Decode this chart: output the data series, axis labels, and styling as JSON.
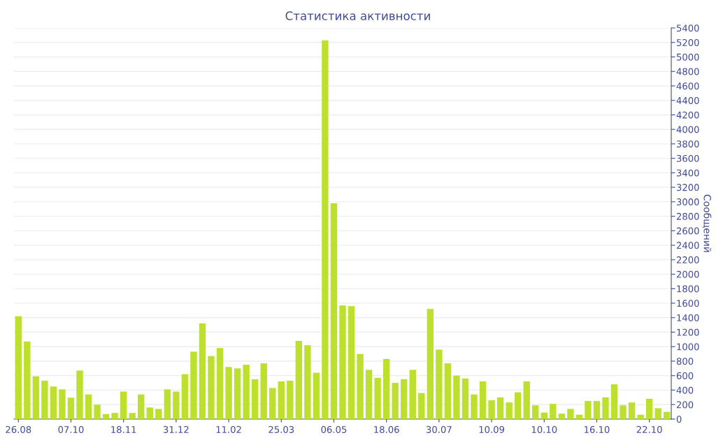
{
  "chart_data": {
    "type": "bar",
    "title": "Статистика активности",
    "ylabel": "Сообщений",
    "categories": [
      "26.08",
      null,
      null,
      null,
      null,
      null,
      "07.10",
      null,
      null,
      null,
      null,
      null,
      "18.11",
      null,
      null,
      null,
      null,
      null,
      "31.12",
      null,
      null,
      null,
      null,
      null,
      "11.02",
      null,
      null,
      null,
      null,
      null,
      "25.03",
      null,
      null,
      null,
      null,
      null,
      "06.05",
      null,
      null,
      null,
      null,
      null,
      "18.06",
      null,
      null,
      null,
      null,
      null,
      "30.07",
      null,
      null,
      null,
      null,
      null,
      "10.09",
      null,
      null,
      null,
      null,
      null,
      "10.10",
      null,
      null,
      null,
      null,
      null,
      "16.10",
      null,
      null,
      null,
      null,
      null,
      "22.10",
      null,
      null
    ],
    "values": [
      1420,
      1070,
      590,
      530,
      450,
      410,
      295,
      670,
      340,
      200,
      70,
      85,
      380,
      85,
      340,
      160,
      140,
      410,
      380,
      620,
      930,
      1320,
      870,
      980,
      720,
      700,
      750,
      550,
      770,
      430,
      520,
      530,
      1080,
      1020,
      640,
      5230,
      2980,
      1570,
      1560,
      900,
      680,
      570,
      830,
      500,
      550,
      680,
      360,
      1520,
      960,
      770,
      600,
      560,
      340,
      520,
      260,
      300,
      230,
      370,
      520,
      190,
      90,
      210,
      75,
      140,
      60,
      250,
      250,
      300,
      480,
      190,
      230,
      60,
      280,
      150,
      100
    ],
    "color": "#bde02f",
    "ylim": [
      0,
      5400
    ],
    "yticks": [
      0,
      200,
      400,
      600,
      800,
      1000,
      1200,
      1400,
      1600,
      1800,
      2000,
      2200,
      2400,
      2600,
      2800,
      3000,
      3200,
      3400,
      3600,
      3800,
      4000,
      4200,
      4400,
      4600,
      4800,
      5000,
      5200,
      5400
    ],
    "grid": "y"
  }
}
